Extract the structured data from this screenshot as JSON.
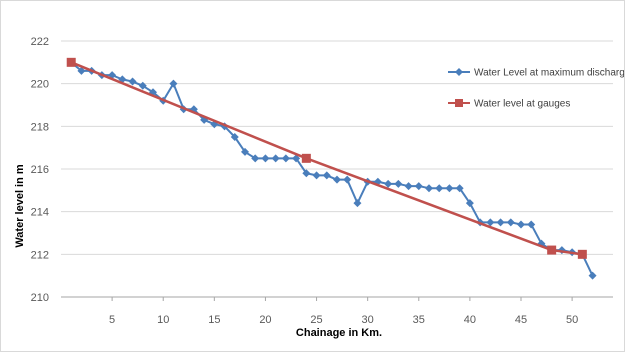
{
  "chart_data": {
    "type": "line",
    "title": "",
    "xlabel": "Chainage in Km.",
    "ylabel": "Water level in m",
    "xlim": [
      0,
      54
    ],
    "ylim": [
      210,
      222
    ],
    "xticks": [
      "5",
      "10",
      "15",
      "20",
      "25",
      "30",
      "35",
      "40",
      "45",
      "50"
    ],
    "yticks": [
      "210",
      "212",
      "214",
      "216",
      "218",
      "220",
      "222"
    ],
    "grid": "horizontal",
    "legend_position": "right",
    "series": [
      {
        "name": "Water Level at maximum discharge",
        "color": "#4a7ebb",
        "marker": "diamond",
        "points": [
          [
            1,
            221.0
          ],
          [
            2,
            220.6
          ],
          [
            3,
            220.6
          ],
          [
            4,
            220.4
          ],
          [
            5,
            220.4
          ],
          [
            6,
            220.2
          ],
          [
            7,
            220.1
          ],
          [
            8,
            219.9
          ],
          [
            9,
            219.6
          ],
          [
            10,
            219.2
          ],
          [
            11,
            220.0
          ],
          [
            12,
            218.8
          ],
          [
            13,
            218.8
          ],
          [
            14,
            218.3
          ],
          [
            15,
            218.1
          ],
          [
            16,
            218.0
          ],
          [
            17,
            217.5
          ],
          [
            18,
            216.8
          ],
          [
            19,
            216.5
          ],
          [
            20,
            216.5
          ],
          [
            21,
            216.5
          ],
          [
            22,
            216.5
          ],
          [
            23,
            216.5
          ],
          [
            24,
            215.8
          ],
          [
            25,
            215.7
          ],
          [
            26,
            215.7
          ],
          [
            27,
            215.5
          ],
          [
            28,
            215.5
          ],
          [
            29,
            214.4
          ],
          [
            30,
            215.4
          ],
          [
            31,
            215.4
          ],
          [
            32,
            215.3
          ],
          [
            33,
            215.3
          ],
          [
            34,
            215.2
          ],
          [
            35,
            215.2
          ],
          [
            36,
            215.1
          ],
          [
            37,
            215.1
          ],
          [
            38,
            215.1
          ],
          [
            39,
            215.1
          ],
          [
            40,
            214.4
          ],
          [
            41,
            213.5
          ],
          [
            42,
            213.5
          ],
          [
            43,
            213.5
          ],
          [
            44,
            213.5
          ],
          [
            45,
            213.4
          ],
          [
            46,
            213.4
          ],
          [
            47,
            212.5
          ],
          [
            48,
            212.2
          ],
          [
            49,
            212.2
          ],
          [
            50,
            212.1
          ],
          [
            51,
            212.0
          ],
          [
            52,
            211.0
          ]
        ]
      },
      {
        "name": "Water level at gauges",
        "color": "#c0504d",
        "marker": "square",
        "points": [
          [
            1,
            221.0
          ],
          [
            24,
            216.5
          ],
          [
            48,
            212.2
          ],
          [
            51,
            212.0
          ]
        ]
      }
    ]
  }
}
